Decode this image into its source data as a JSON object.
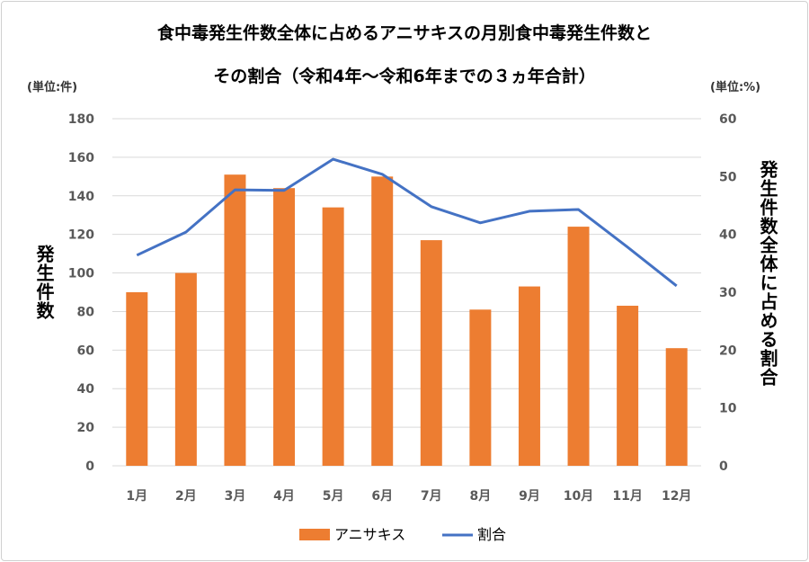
{
  "chart_data": {
    "type": "bar+line",
    "title_line1": "食中毒発生件数全体に占めるアニサキスの月別食中毒発生件数と",
    "title_line2": "その割合（令和4年～令和6年までの３ヵ年合計）",
    "left_unit": "(単位:件)",
    "right_unit": "(単位:%)",
    "ylabel": "発生件数",
    "y2label": "発生件数全体に占める割合",
    "categories": [
      "1月",
      "2月",
      "3月",
      "4月",
      "5月",
      "6月",
      "7月",
      "8月",
      "9月",
      "10月",
      "11月",
      "12月"
    ],
    "ylim": [
      0,
      180
    ],
    "yticks": [
      0,
      20,
      40,
      60,
      80,
      100,
      120,
      140,
      160,
      180
    ],
    "y2lim": [
      0,
      60
    ],
    "y2ticks": [
      0,
      10,
      20,
      30,
      40,
      50,
      60
    ],
    "grid": true,
    "legend_position": "bottom",
    "series": [
      {
        "name": "アニサキス",
        "type": "bar",
        "axis": "left",
        "color": "#ED7D31",
        "values": [
          90,
          100,
          151,
          144,
          134,
          150,
          117,
          81,
          93,
          124,
          83,
          61
        ]
      },
      {
        "name": "割合",
        "type": "line",
        "axis": "right",
        "color": "#4472C4",
        "values": [
          36.4,
          40.4,
          47.7,
          47.6,
          53.0,
          50.4,
          44.8,
          42.0,
          44.0,
          44.3,
          37.8,
          31.1
        ]
      }
    ]
  }
}
